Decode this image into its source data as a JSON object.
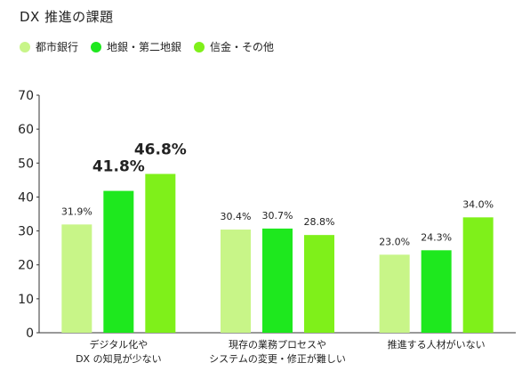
{
  "title": "DX 推進の課題",
  "colors": {
    "series1": "#c8f588",
    "series2": "#1ee81e",
    "series3": "#7ff01a",
    "highlight2": "#39d91b",
    "highlight3": "#8ee03a"
  },
  "chart_data": {
    "type": "bar",
    "categories": [
      [
        "デジタル化や",
        "DX の知見が少ない"
      ],
      [
        "現存の業務プロセスや",
        "システムの変更・修正が難しい"
      ],
      [
        "推進する人材がいない"
      ]
    ],
    "series": [
      {
        "name": "都市銀行",
        "values": [
          31.9,
          30.4,
          23.0
        ],
        "labels": [
          "31.9%",
          "30.4%",
          "23.0%"
        ]
      },
      {
        "name": "地銀・第二地銀",
        "values": [
          41.8,
          30.7,
          24.3
        ],
        "labels": [
          "41.8%",
          "30.7%",
          "24.3%"
        ]
      },
      {
        "name": "信金・その他",
        "values": [
          46.8,
          28.8,
          34.0
        ],
        "labels": [
          "46.8%",
          "28.8%",
          "34.0%"
        ]
      }
    ],
    "highlighted": [
      [
        1,
        0
      ],
      [
        2,
        0
      ]
    ],
    "ylim": [
      0,
      70
    ],
    "yticks": [
      "0",
      "10",
      "20",
      "30",
      "40",
      "50",
      "60",
      "70"
    ],
    "grid": false,
    "legend": "top-left"
  }
}
